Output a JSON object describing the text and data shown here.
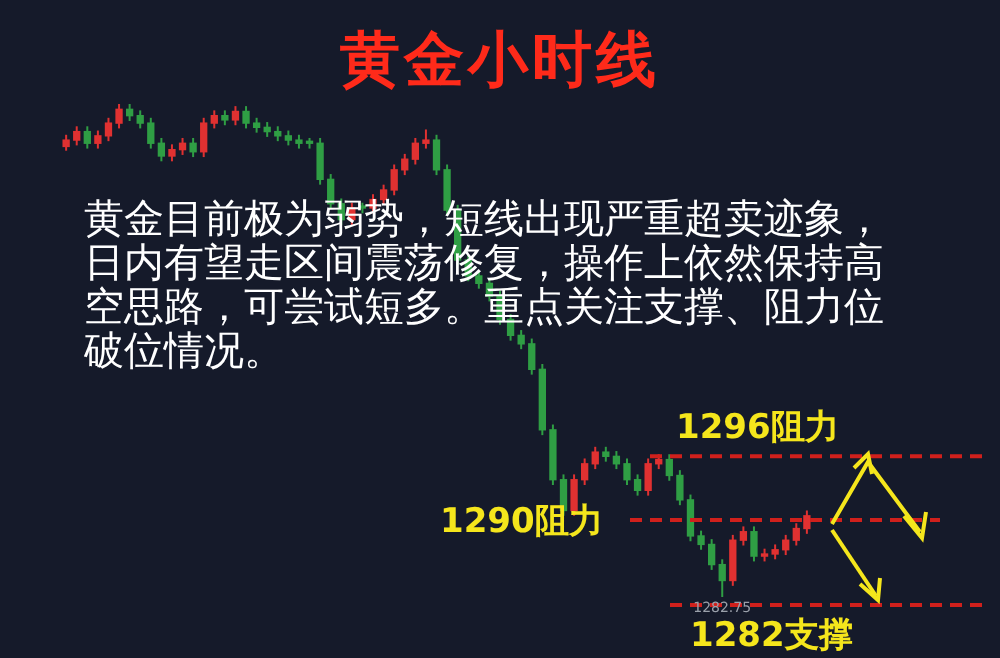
{
  "chart_data": {
    "type": "candlestick",
    "title": "黄金小时线",
    "categories": [
      null,
      null,
      null,
      null,
      null,
      null,
      null,
      null,
      null,
      null,
      null,
      null,
      null,
      null,
      null,
      null,
      null,
      null,
      null,
      null,
      null,
      null,
      null,
      null,
      null,
      null,
      null,
      null,
      null,
      null,
      null,
      null,
      null,
      null,
      null,
      null,
      null,
      null,
      null,
      null,
      null,
      null,
      null,
      null,
      null,
      null,
      null,
      null,
      null,
      null,
      null,
      null,
      null,
      null,
      null,
      null,
      null,
      null,
      null,
      null,
      null,
      null,
      null,
      null,
      null,
      null,
      null,
      null,
      null,
      null,
      null
    ],
    "ohlc": [
      [
        1325.2,
        1326.3,
        1324.8,
        1325.8
      ],
      [
        1325.8,
        1327.1,
        1325.3,
        1326.6
      ],
      [
        1326.6,
        1327.1,
        1325.0,
        1325.5
      ],
      [
        1325.5,
        1326.7,
        1325.0,
        1326.2
      ],
      [
        1326.2,
        1327.9,
        1325.7,
        1327.4
      ],
      [
        1327.4,
        1329.2,
        1326.9,
        1328.7
      ],
      [
        1328.7,
        1329.2,
        1327.6,
        1328.1
      ],
      [
        1328.1,
        1328.6,
        1326.9,
        1327.4
      ],
      [
        1327.4,
        1327.9,
        1325.0,
        1325.5
      ],
      [
        1325.5,
        1326.0,
        1323.8,
        1324.3
      ],
      [
        1324.3,
        1325.4,
        1323.8,
        1324.9
      ],
      [
        1324.9,
        1326.0,
        1324.4,
        1325.5
      ],
      [
        1325.5,
        1326.0,
        1324.2,
        1324.7
      ],
      [
        1324.7,
        1327.9,
        1324.2,
        1327.4
      ],
      [
        1327.4,
        1328.6,
        1326.9,
        1328.1
      ],
      [
        1328.1,
        1328.6,
        1327.2,
        1327.7
      ],
      [
        1327.7,
        1329.0,
        1327.2,
        1328.5
      ],
      [
        1328.5,
        1329.0,
        1326.9,
        1327.4
      ],
      [
        1327.4,
        1327.9,
        1326.5,
        1327.0
      ],
      [
        1327.0,
        1327.5,
        1326.1,
        1326.6
      ],
      [
        1326.6,
        1327.1,
        1325.7,
        1326.2
      ],
      [
        1326.2,
        1326.7,
        1325.3,
        1325.8
      ],
      [
        1325.8,
        1326.3,
        1325.0,
        1325.5
      ],
      [
        1325.5,
        1326.0,
        1325.0,
        1325.5
      ],
      [
        1325.5,
        1326.0,
        1321.6,
        1322.1
      ],
      [
        1322.1,
        1322.6,
        1319.3,
        1319.8
      ],
      [
        1319.8,
        1320.3,
        1317.8,
        1318.3
      ],
      [
        1318.3,
        1319.9,
        1317.8,
        1319.4
      ],
      [
        1319.4,
        1319.9,
        1318.9,
        1319.4
      ],
      [
        1319.4,
        1320.7,
        1318.9,
        1320.2
      ],
      [
        1320.2,
        1321.6,
        1319.7,
        1321.1
      ],
      [
        1321.1,
        1323.5,
        1320.6,
        1323.0
      ],
      [
        1323.0,
        1324.5,
        1322.5,
        1324.0
      ],
      [
        1324.0,
        1326.0,
        1323.5,
        1325.5
      ],
      [
        1325.5,
        1326.8,
        1325.0,
        1325.8
      ],
      [
        1325.8,
        1326.3,
        1322.5,
        1323.0
      ],
      [
        1323.0,
        1323.5,
        1318.7,
        1319.2
      ],
      [
        1319.2,
        1319.7,
        1314.0,
        1314.5
      ],
      [
        1314.5,
        1315.0,
        1312.5,
        1313.0
      ],
      [
        1313.0,
        1313.5,
        1311.8,
        1312.3
      ],
      [
        1312.3,
        1312.8,
        1310.6,
        1311.1
      ],
      [
        1311.1,
        1311.6,
        1308.4,
        1308.9
      ],
      [
        1308.9,
        1309.4,
        1306.9,
        1307.4
      ],
      [
        1307.4,
        1307.9,
        1306.1,
        1306.6
      ],
      [
        1306.6,
        1307.1,
        1303.7,
        1304.2
      ],
      [
        1304.2,
        1304.7,
        1298.0,
        1298.5
      ],
      [
        1298.5,
        1299.0,
        1293.3,
        1293.8
      ],
      [
        1293.8,
        1294.3,
        1290.4,
        1290.9
      ],
      [
        1290.9,
        1294.3,
        1290.4,
        1293.8
      ],
      [
        1293.8,
        1295.8,
        1293.3,
        1295.3
      ],
      [
        1295.3,
        1296.9,
        1294.8,
        1296.4
      ],
      [
        1296.4,
        1296.9,
        1295.5,
        1296.0
      ],
      [
        1296.0,
        1296.5,
        1294.8,
        1295.3
      ],
      [
        1295.3,
        1295.8,
        1293.3,
        1293.8
      ],
      [
        1293.8,
        1294.3,
        1292.3,
        1292.8
      ],
      [
        1292.8,
        1295.8,
        1292.3,
        1295.3
      ],
      [
        1295.3,
        1296.2,
        1294.8,
        1295.7
      ],
      [
        1295.7,
        1296.2,
        1293.7,
        1294.2
      ],
      [
        1294.2,
        1294.7,
        1291.4,
        1291.9
      ],
      [
        1291.9,
        1292.4,
        1288.0,
        1288.5
      ],
      [
        1288.5,
        1289.0,
        1287.2,
        1287.7
      ],
      [
        1287.7,
        1288.2,
        1285.3,
        1285.8
      ],
      [
        1285.8,
        1286.3,
        1282.75,
        1284.3
      ],
      [
        1284.3,
        1288.6,
        1283.8,
        1288.1
      ],
      [
        1288.1,
        1289.4,
        1287.6,
        1288.9
      ],
      [
        1288.9,
        1289.4,
        1286.1,
        1286.6
      ],
      [
        1286.6,
        1287.3,
        1286.1,
        1286.8
      ],
      [
        1286.8,
        1287.7,
        1286.3,
        1287.2
      ],
      [
        1287.2,
        1288.6,
        1286.7,
        1288.1
      ],
      [
        1288.1,
        1289.7,
        1287.6,
        1289.2
      ],
      [
        1289.2,
        1290.9,
        1288.7,
        1290.4
      ]
    ],
    "colors": [
      "#e03131",
      "#e03131",
      "#2f9e44",
      "#e03131",
      "#e03131",
      "#e03131",
      "#2f9e44",
      "#2f9e44",
      "#2f9e44",
      "#2f9e44",
      "#e03131",
      "#e03131",
      "#2f9e44",
      "#e03131",
      "#e03131",
      "#2f9e44",
      "#e03131",
      "#2f9e44",
      "#2f9e44",
      "#2f9e44",
      "#2f9e44",
      "#2f9e44",
      "#2f9e44",
      "#2f9e44",
      "#2f9e44",
      "#2f9e44",
      "#2f9e44",
      "#e03131",
      "#2f9e44",
      "#e03131",
      "#e03131",
      "#e03131",
      "#e03131",
      "#e03131",
      "#e03131",
      "#2f9e44",
      "#2f9e44",
      "#2f9e44",
      "#2f9e44",
      "#2f9e44",
      "#2f9e44",
      "#2f9e44",
      "#2f9e44",
      "#2f9e44",
      "#2f9e44",
      "#2f9e44",
      "#2f9e44",
      "#2f9e44",
      "#e03131",
      "#e03131",
      "#e03131",
      "#2f9e44",
      "#2f9e44",
      "#2f9e44",
      "#2f9e44",
      "#e03131",
      "#e03131",
      "#2f9e44",
      "#2f9e44",
      "#2f9e44",
      "#2f9e44",
      "#2f9e44",
      "#2f9e44",
      "#e03131",
      "#e03131",
      "#2f9e44",
      "#e03131",
      "#e03131",
      "#e03131",
      "#e03131",
      "#e03131"
    ],
    "ylim": [
      1277,
      1339
    ],
    "tick_labels": false,
    "ref_lines": [
      {
        "axis": "y",
        "value": 1296,
        "label": "1296阻力",
        "color": "#d0201c",
        "line_style": "dashed"
      },
      {
        "axis": "y",
        "value": 1290,
        "label": "1290阻力",
        "color": "#d0201c",
        "line_style": "dashed"
      },
      {
        "axis": "y",
        "value": 1282,
        "label": "1282支撑",
        "color": "#d0201c",
        "line_style": "dashed"
      }
    ],
    "annotations": [
      "黄金目前极为弱势，短线出现严重超卖迹象，日内有望走区间震荡修复，操作上依然保持高空思路，可尝试短多。重点关注支撑、阻力位破位情况。",
      {
        "text": "1282.75",
        "y": 1282.75
      }
    ]
  }
}
